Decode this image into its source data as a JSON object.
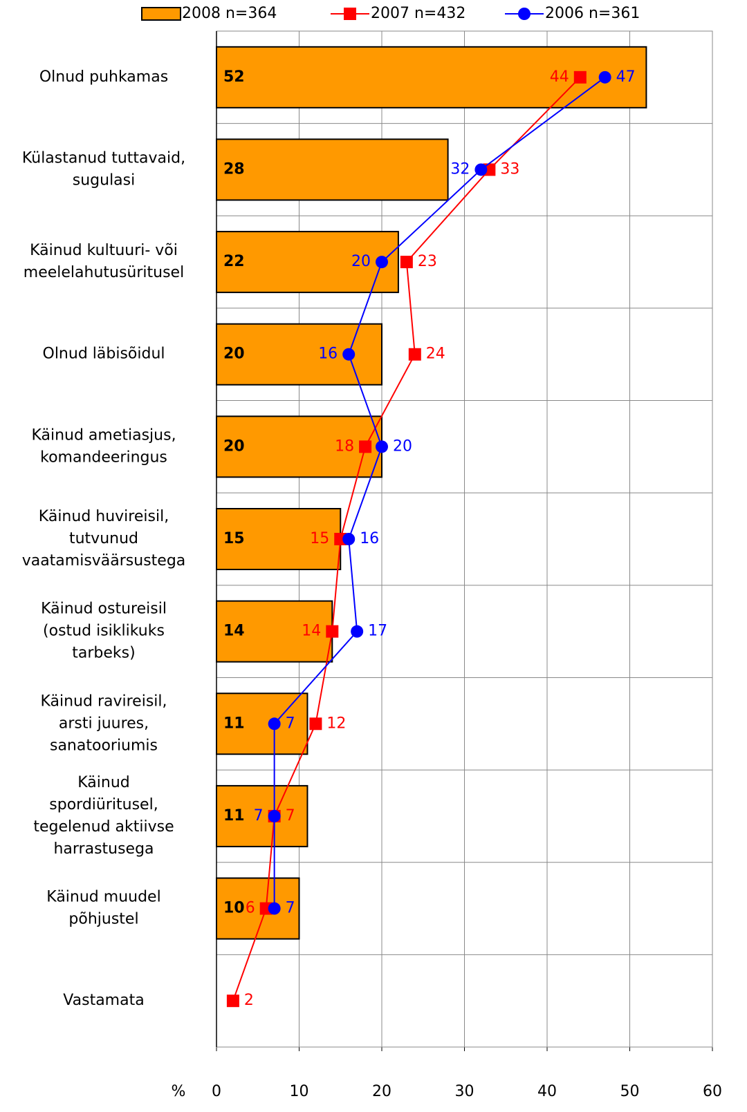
{
  "chart_data": {
    "type": "bar",
    "categories": [
      "Olnud puhkamas",
      "Külastanud tuttavaid,\nsugulasi",
      "Käinud kultuuri- või\nmeelelahutusüritusel",
      "Olnud läbisõidul",
      "Käinud ametiasjus,\nkomandeeringus",
      "Käinud  huvireisil,\ntutvunud\nvaatamisväärsustega",
      "Käinud ostureisil\n(ostud isiklikuks\ntarbeks)",
      "Käinud ravireisil,\narsti juures,\nsanatooriumis",
      "Käinud\nspordiüritusel,\ntegelenud aktiivse\nharrastusega",
      "Käinud muudel\npõhjustel",
      "Vastamata"
    ],
    "series": [
      {
        "name": "2008 n=364",
        "type": "bar",
        "color": "#ff9900",
        "values": [
          52,
          28,
          22,
          20,
          20,
          15,
          14,
          11,
          11,
          10,
          null
        ]
      },
      {
        "name": "2007 n=432",
        "type": "line",
        "marker": "square",
        "color": "#ff0000",
        "values": [
          44,
          33,
          23,
          24,
          18,
          15,
          14,
          12,
          7,
          6,
          2
        ]
      },
      {
        "name": "2006 n=361",
        "type": "line",
        "marker": "circle",
        "color": "#0000ff",
        "values": [
          47,
          32,
          20,
          16,
          20,
          16,
          17,
          7,
          7,
          7,
          null
        ]
      }
    ],
    "xlabel": "%",
    "xlim": [
      0,
      60
    ],
    "xticks": [
      0,
      10,
      20,
      30,
      40,
      50,
      60
    ],
    "grid": true
  }
}
